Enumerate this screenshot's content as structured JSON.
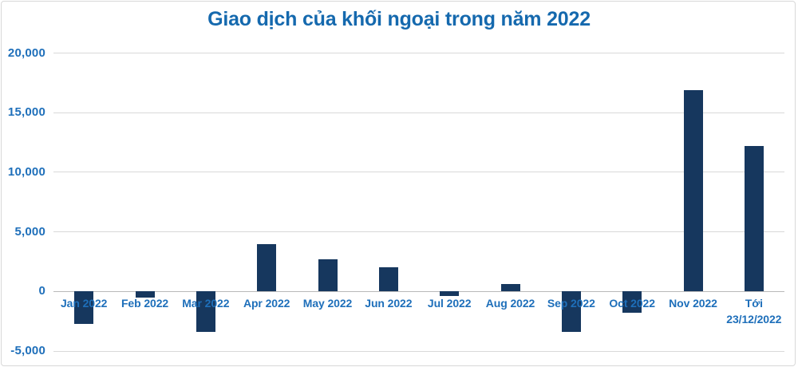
{
  "chart_data": {
    "type": "bar",
    "title": "Giao dịch của khối ngoại trong năm 2022",
    "categories": [
      "Jan 2022",
      "Feb 2022",
      "Mar 2022",
      "Apr 2022",
      "May 2022",
      "Jun 2022",
      "Jul 2022",
      "Aug 2022",
      "Sep 2022",
      "Oct 2022",
      "Nov 2022",
      "Tới\n23/12/2022"
    ],
    "values": [
      -2700,
      -500,
      -3400,
      4000,
      2700,
      2000,
      -400,
      650,
      -3400,
      -1800,
      16900,
      12200
    ],
    "xlabel": "",
    "ylabel": "",
    "ylim": [
      -5000,
      20000
    ],
    "yticks": [
      20000,
      15000,
      10000,
      5000,
      0,
      -5000
    ],
    "ytick_labels": [
      "20,000",
      "15,000",
      "10,000",
      "5,000",
      "0",
      "-5,000"
    ],
    "grid": true,
    "legend_position": "none",
    "colors": {
      "bar": "#16375e",
      "title": "#1569ae",
      "axis_text": "#1e6fba",
      "gridline": "#d9d9d9",
      "zero_line": "#b9b9b9",
      "frame_border": "#d8d8d8",
      "background": "#ffffff"
    }
  }
}
